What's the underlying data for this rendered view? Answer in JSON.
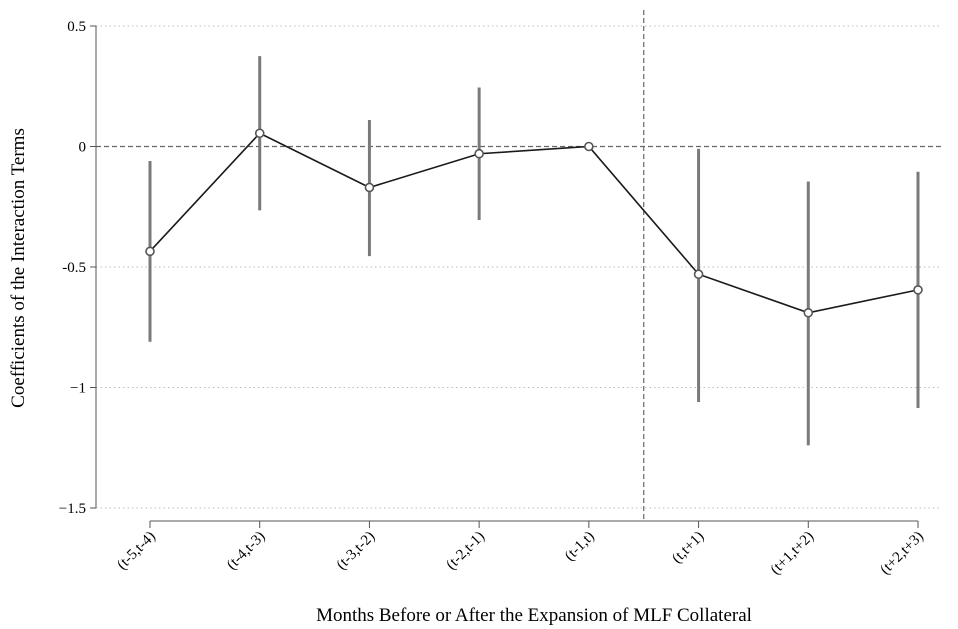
{
  "chart_data": {
    "type": "line",
    "title": "",
    "xlabel": "Months Before or After the Expansion of MLF Collateral",
    "ylabel": "Coefficients of the Interaction Terms",
    "categories": [
      "(t-5,t-4)",
      "(t-4,t-3)",
      "(t-3,t-2)",
      "(t-2,t-1)",
      "(t-1,t)",
      "(t,t+1)",
      "(t+1,t+2)",
      "(t+2,t+3)"
    ],
    "series": [
      {
        "values": [
          -0.435,
          0.055,
          -0.17,
          -0.03,
          0.0,
          -0.53,
          -0.69,
          -0.595
        ],
        "ci_lower": [
          -0.81,
          -0.265,
          -0.455,
          -0.305,
          0.0,
          -1.06,
          -1.24,
          -1.085
        ],
        "ci_upper": [
          -0.06,
          0.375,
          0.11,
          0.245,
          0.0,
          -0.01,
          -0.145,
          -0.105
        ]
      }
    ],
    "ylim": [
      -1.5,
      0.5
    ],
    "yticks": [
      0.5,
      0,
      -0.5,
      -1,
      -1.5
    ],
    "ytick_labels": [
      "0.5",
      "0",
      "-0.5",
      "−1",
      "−1.5"
    ],
    "reference_lines": {
      "y": 0,
      "x_between_categories": [
        4,
        5
      ]
    },
    "grid": true,
    "colors": {
      "line": "#1a1a1a",
      "error_bar": "#7a7a7a",
      "marker": "#555555",
      "grid": "#bdbdbd",
      "reference": "#666666"
    }
  }
}
